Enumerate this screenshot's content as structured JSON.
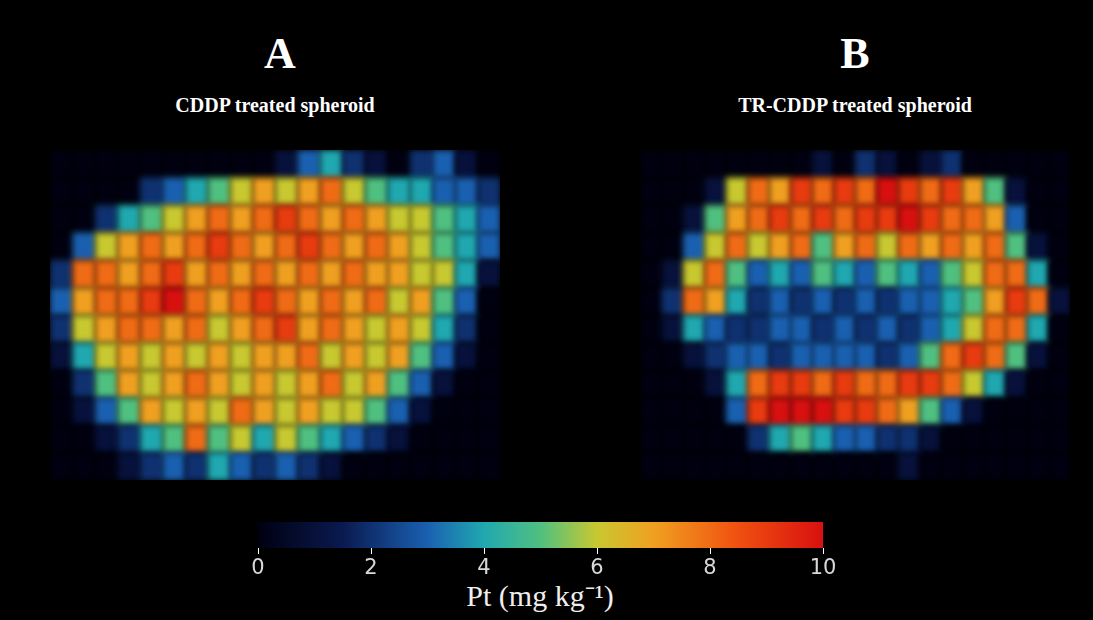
{
  "chart_data": [
    {
      "type": "heatmap",
      "panel": "A",
      "title": "CDDP treated spheroid",
      "tick_labels": false,
      "cells": [
        [
          0,
          0,
          0,
          0,
          0,
          0,
          0,
          0,
          0,
          0,
          1,
          3,
          4,
          2,
          1,
          0,
          2,
          3,
          1,
          0
        ],
        [
          0,
          0,
          0,
          0,
          2,
          3,
          4,
          5,
          6,
          7,
          6,
          7,
          8,
          6,
          5,
          4,
          4,
          3,
          3,
          2
        ],
        [
          0,
          0,
          2,
          4,
          5,
          6,
          7,
          8,
          7,
          8,
          9,
          8,
          7,
          8,
          7,
          6,
          6,
          5,
          4,
          3
        ],
        [
          0,
          3,
          6,
          7,
          8,
          7,
          8,
          9,
          8,
          7,
          8,
          9,
          8,
          7,
          8,
          7,
          6,
          5,
          4,
          3
        ],
        [
          2,
          8,
          8,
          7,
          8,
          9,
          7,
          8,
          7,
          8,
          7,
          8,
          7,
          8,
          7,
          7,
          6,
          6,
          4,
          1
        ],
        [
          3,
          7,
          8,
          8,
          9,
          10,
          8,
          7,
          8,
          9,
          8,
          7,
          8,
          7,
          8,
          6,
          7,
          5,
          3,
          0
        ],
        [
          2,
          6,
          7,
          8,
          8,
          7,
          8,
          6,
          7,
          8,
          9,
          7,
          8,
          7,
          6,
          7,
          6,
          4,
          2,
          0
        ],
        [
          1,
          4,
          6,
          7,
          6,
          7,
          6,
          7,
          6,
          7,
          7,
          8,
          6,
          7,
          6,
          7,
          5,
          3,
          1,
          0
        ],
        [
          0,
          2,
          5,
          7,
          6,
          7,
          8,
          7,
          6,
          7,
          6,
          7,
          8,
          6,
          7,
          5,
          3,
          1,
          0,
          0
        ],
        [
          0,
          1,
          3,
          5,
          7,
          6,
          7,
          6,
          8,
          7,
          6,
          7,
          6,
          6,
          5,
          3,
          1,
          0,
          0,
          0
        ],
        [
          0,
          0,
          1,
          2,
          4,
          5,
          8,
          5,
          6,
          4,
          6,
          5,
          4,
          3,
          2,
          1,
          0,
          0,
          0,
          0
        ],
        [
          0,
          0,
          0,
          1,
          2,
          3,
          2,
          4,
          3,
          2,
          3,
          2,
          1,
          0,
          0,
          0,
          0,
          0,
          0,
          0
        ]
      ]
    },
    {
      "type": "heatmap",
      "panel": "B",
      "title": "TR-CDDP treated spheroid",
      "tick_labels": false,
      "cells": [
        [
          0,
          0,
          0,
          0,
          0,
          0,
          0,
          0,
          1,
          0,
          2,
          1,
          0,
          1,
          2,
          0,
          0,
          0,
          0,
          0
        ],
        [
          0,
          0,
          0,
          1,
          6,
          8,
          7,
          9,
          8,
          9,
          8,
          10,
          9,
          8,
          9,
          7,
          5,
          1,
          0,
          0
        ],
        [
          0,
          0,
          1,
          5,
          7,
          8,
          9,
          8,
          9,
          8,
          9,
          9,
          10,
          9,
          8,
          8,
          7,
          3,
          0,
          0
        ],
        [
          0,
          0,
          3,
          6,
          8,
          6,
          7,
          8,
          5,
          7,
          8,
          6,
          8,
          7,
          8,
          7,
          8,
          5,
          1,
          0
        ],
        [
          0,
          1,
          6,
          8,
          5,
          3,
          4,
          3,
          5,
          4,
          3,
          5,
          4,
          3,
          5,
          6,
          8,
          8,
          4,
          0
        ],
        [
          0,
          2,
          8,
          7,
          4,
          2,
          3,
          2,
          3,
          2,
          3,
          2,
          3,
          3,
          4,
          5,
          7,
          9,
          8,
          1
        ],
        [
          0,
          1,
          4,
          3,
          2,
          2,
          3,
          3,
          2,
          3,
          2,
          3,
          2,
          3,
          4,
          6,
          8,
          8,
          4,
          0
        ],
        [
          0,
          0,
          1,
          2,
          3,
          3,
          2,
          3,
          3,
          3,
          3,
          2,
          3,
          5,
          8,
          9,
          8,
          5,
          1,
          0
        ],
        [
          0,
          0,
          0,
          1,
          4,
          8,
          9,
          9,
          8,
          9,
          8,
          8,
          9,
          9,
          8,
          6,
          4,
          1,
          0,
          0
        ],
        [
          0,
          0,
          0,
          0,
          3,
          9,
          10,
          10,
          10,
          9,
          9,
          8,
          7,
          5,
          3,
          1,
          0,
          0,
          0,
          0
        ],
        [
          0,
          0,
          0,
          0,
          0,
          2,
          4,
          5,
          4,
          3,
          3,
          2,
          2,
          1,
          0,
          0,
          0,
          0,
          0,
          0
        ],
        [
          0,
          0,
          0,
          0,
          0,
          0,
          0,
          0,
          0,
          0,
          0,
          0,
          1,
          0,
          0,
          0,
          0,
          0,
          0,
          0
        ]
      ]
    }
  ],
  "colorbar": {
    "label": "Pt (mg kg⁻¹)",
    "range": [
      0,
      10
    ],
    "ticks": [
      0,
      2,
      4,
      6,
      8,
      10
    ]
  }
}
